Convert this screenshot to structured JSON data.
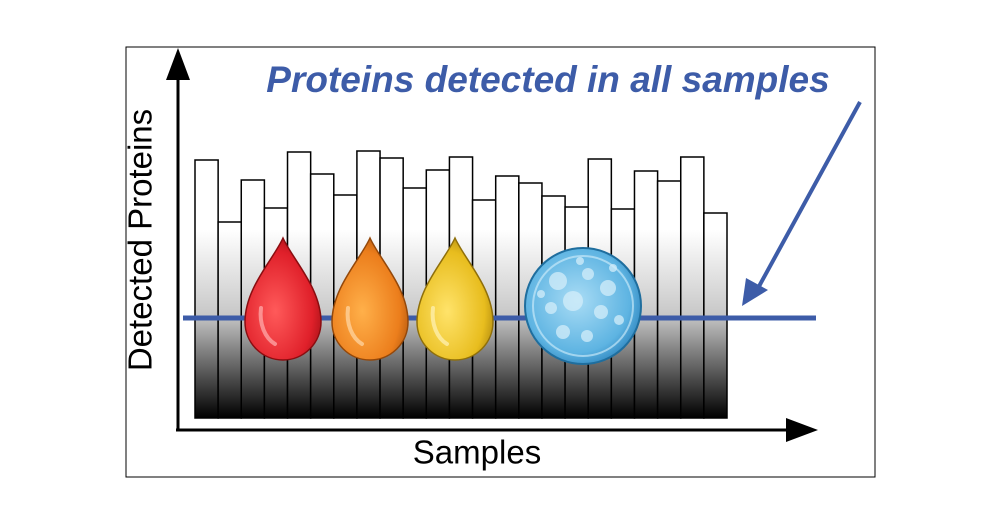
{
  "chart_data": {
    "type": "bar",
    "annotation": "Proteins detected in all samples",
    "x_label": "Samples",
    "y_label": "Detected Proteins",
    "values": [
      258,
      196,
      238,
      210,
      266,
      244,
      223,
      267,
      260,
      230,
      248,
      261,
      218,
      242,
      235,
      222,
      211,
      259,
      209,
      247,
      237,
      261,
      205
    ],
    "threshold": 100,
    "ylim": [
      0,
      368
    ],
    "threshold_color": "#3d5ca8",
    "annotation_color": "#3d5ca8"
  }
}
